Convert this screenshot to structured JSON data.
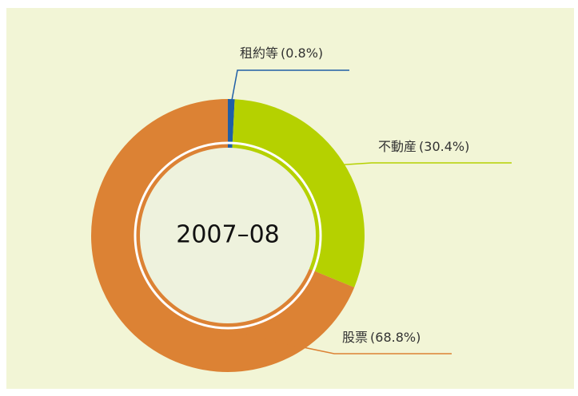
{
  "chart_data": {
    "type": "donut",
    "center_label": "2007–08",
    "categories": [
      "租約等",
      "不動産",
      "股票"
    ],
    "values": [
      0.8,
      30.4,
      68.8
    ],
    "value_labels": [
      "(0.8%)",
      "(30.4%)",
      "(68.8%)"
    ],
    "colors": [
      "#1f5fa6",
      "#b5d100",
      "#dc8234"
    ]
  }
}
